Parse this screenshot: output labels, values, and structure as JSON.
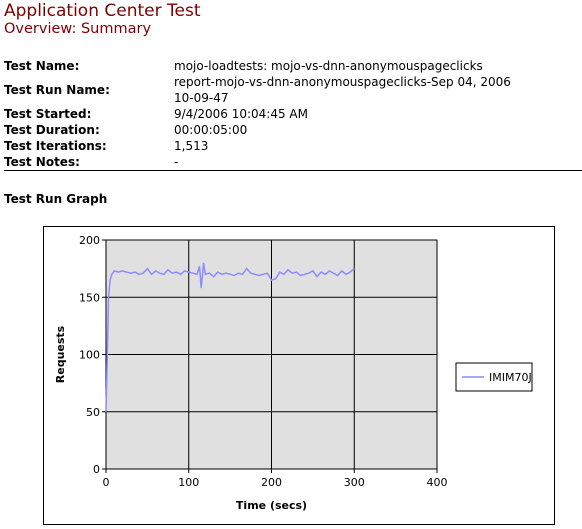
{
  "header": {
    "title": "Application Center Test",
    "subtitle": "Overview: Summary"
  },
  "test_info": [
    {
      "label": "Test Name:",
      "value": "mojo-loadtests: mojo-vs-dnn-anonymouspageclicks"
    },
    {
      "label": "Test Run Name:",
      "value": "report-mojo-vs-dnn-anonymouspageclicks-Sep 04, 2006",
      "value2": "10-09-47"
    },
    {
      "label": "Test Started:",
      "value": "9/4/2006 10:04:45 AM"
    },
    {
      "label": "Test Duration:",
      "value": "00:00:05:00"
    },
    {
      "label": "Test Iterations:",
      "value": "1,513"
    },
    {
      "label": "Test Notes:",
      "value": "-"
    }
  ],
  "graph_heading": "Test Run Graph",
  "colors": {
    "title": "#800000",
    "series": "#8c8cff",
    "plot_bg": "#e0e0e0"
  },
  "chart_data": {
    "type": "line",
    "xlabel": "Time (secs)",
    "ylabel": "Requests",
    "xlim": [
      0,
      400
    ],
    "ylim": [
      0,
      200
    ],
    "x_ticks": [
      0,
      100,
      200,
      300,
      400
    ],
    "y_ticks": [
      0,
      50,
      100,
      150,
      200
    ],
    "grid": true,
    "legend_position": "right",
    "series": [
      {
        "name": "IMIM70J",
        "x": [
          0,
          2,
          3,
          5,
          7,
          10,
          15,
          20,
          25,
          30,
          35,
          40,
          45,
          50,
          55,
          60,
          65,
          70,
          75,
          80,
          85,
          90,
          95,
          100,
          105,
          110,
          113,
          115,
          118,
          120,
          125,
          130,
          135,
          140,
          145,
          150,
          155,
          160,
          165,
          170,
          175,
          180,
          185,
          190,
          195,
          200,
          205,
          210,
          215,
          220,
          225,
          230,
          235,
          240,
          245,
          250,
          255,
          260,
          265,
          270,
          275,
          280,
          285,
          290,
          295,
          300
        ],
        "y": [
          50,
          115,
          150,
          165,
          170,
          173,
          172,
          173,
          172,
          171,
          172,
          170,
          171,
          175,
          170,
          173,
          171,
          170,
          174,
          171,
          172,
          170,
          173,
          172,
          171,
          170,
          177,
          158,
          180,
          170,
          171,
          168,
          172,
          170,
          171,
          170,
          169,
          171,
          170,
          175,
          171,
          170,
          169,
          170,
          171,
          165,
          166,
          172,
          170,
          174,
          171,
          172,
          169,
          170,
          171,
          173,
          168,
          172,
          170,
          173,
          171,
          169,
          173,
          170,
          172,
          175
        ]
      }
    ]
  }
}
